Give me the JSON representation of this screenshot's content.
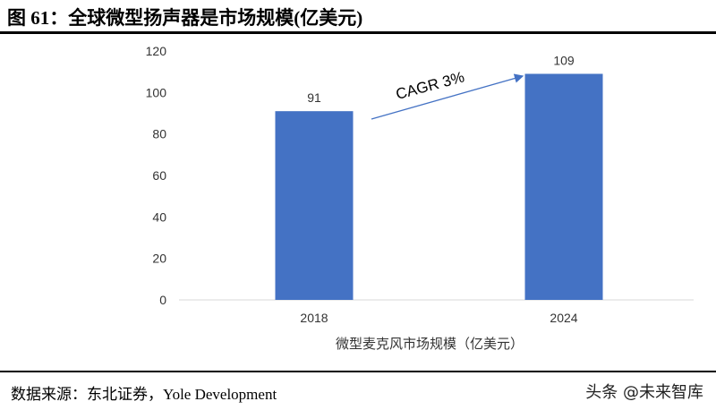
{
  "title": "图 61：全球微型扬声器是市场规模(亿美元)",
  "source": "数据来源：东北证券，Yole Development",
  "watermark": "头条 @未来智库",
  "chart_data": {
    "type": "bar",
    "categories": [
      "2018",
      "2024"
    ],
    "values": [
      91,
      109
    ],
    "data_labels": [
      "91",
      "109"
    ],
    "xlabel": "微型麦克风市场规模（亿美元）",
    "ylabel": "",
    "ylim": [
      0,
      120
    ],
    "yticks": [
      "0",
      "20",
      "40",
      "60",
      "80",
      "100",
      "120"
    ],
    "grid": false,
    "bar_color": "#4472C4",
    "annotation": "CAGR 3%"
  }
}
